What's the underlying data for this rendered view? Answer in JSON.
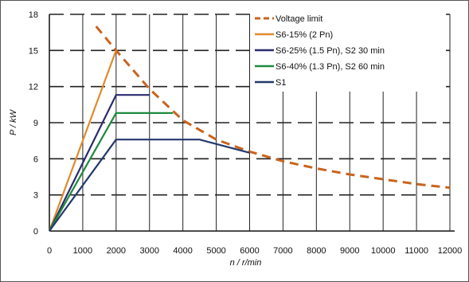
{
  "chart_data": {
    "type": "line",
    "title": "",
    "xlabel": "n / r/min",
    "ylabel": "P / kW",
    "xlim": [
      0,
      12000
    ],
    "ylim": [
      0,
      18
    ],
    "xticks": [
      "0",
      "1000",
      "2000",
      "3000",
      "4000",
      "5000",
      "6000",
      "7000",
      "8000",
      "9000",
      "10000",
      "11000",
      "12000"
    ],
    "yticks": [
      "0",
      "3",
      "6",
      "9",
      "12",
      "15",
      "18"
    ],
    "grid": true,
    "legend_position": "top-right",
    "series": [
      {
        "name": "Voltage limit",
        "color": "#c8641e",
        "dashed": true,
        "points": [
          [
            1400,
            17.0
          ],
          [
            2000,
            15.0
          ],
          [
            3000,
            11.8
          ],
          [
            4000,
            9.2
          ],
          [
            5000,
            7.6
          ],
          [
            6000,
            6.6
          ],
          [
            7000,
            5.8
          ],
          [
            8000,
            5.2
          ],
          [
            9000,
            4.7
          ],
          [
            10000,
            4.3
          ],
          [
            11000,
            3.9
          ],
          [
            12000,
            3.6
          ]
        ]
      },
      {
        "name": "S6-15% (2 Pn)",
        "color": "#e08a2c",
        "dashed": false,
        "points": [
          [
            0,
            0
          ],
          [
            2000,
            15.0
          ]
        ]
      },
      {
        "name": "S6-25% (1.5 Pn), S2 30 min",
        "color": "#2a2a6e",
        "dashed": false,
        "points": [
          [
            0,
            0
          ],
          [
            2000,
            11.3
          ],
          [
            3000,
            11.3
          ]
        ]
      },
      {
        "name": "S6-40% (1.3 Pn), S2 60 min",
        "color": "#1e8a3c",
        "dashed": false,
        "points": [
          [
            0,
            0
          ],
          [
            2000,
            9.8
          ],
          [
            3700,
            9.8
          ]
        ]
      },
      {
        "name": "S1",
        "color": "#24386e",
        "dashed": false,
        "points": [
          [
            0,
            0
          ],
          [
            2000,
            7.6
          ],
          [
            4500,
            7.6
          ],
          [
            6000,
            6.5
          ]
        ]
      }
    ]
  }
}
